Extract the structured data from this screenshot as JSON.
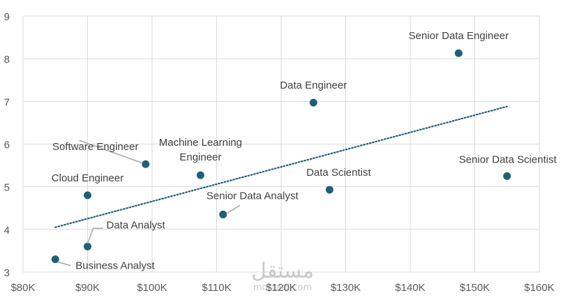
{
  "chart_data": {
    "type": "scatter",
    "title": "",
    "xlabel": "",
    "ylabel": "",
    "xlim": [
      80000,
      160000
    ],
    "ylim": [
      3,
      9
    ],
    "x_ticks": [
      80000,
      90000,
      100000,
      110000,
      120000,
      130000,
      140000,
      150000,
      160000
    ],
    "x_tick_labels": [
      "$80K",
      "$90K",
      "$100K",
      "$110K",
      "$120K",
      "$130K",
      "$140K",
      "$150K",
      "$160K"
    ],
    "y_ticks": [
      3,
      4,
      5,
      6,
      7,
      8,
      9
    ],
    "y_tick_labels": [
      "3",
      "4",
      "5",
      "6",
      "7",
      "8",
      "9"
    ],
    "grid": true,
    "marker_color": "#1f5f7a",
    "trendline": {
      "type": "linear",
      "style": "dotted",
      "color": "#1f5f7a",
      "x_range": [
        85000,
        155000
      ],
      "y_range": [
        4.05,
        6.88
      ]
    },
    "points": [
      {
        "label": "Business Analyst",
        "x": 85000,
        "y": 3.3
      },
      {
        "label": "Data Analyst",
        "x": 90000,
        "y": 3.6
      },
      {
        "label": "Cloud Engineer",
        "x": 90000,
        "y": 4.8
      },
      {
        "label": "Software Engineer",
        "x": 99000,
        "y": 5.53
      },
      {
        "label": "Machine Learning Engineer",
        "label_lines": [
          "Machine Learning",
          "Engineer"
        ],
        "x": 107500,
        "y": 5.27
      },
      {
        "label": "Senior Data Analyst",
        "x": 111000,
        "y": 4.35
      },
      {
        "label": "Data Engineer",
        "x": 125000,
        "y": 6.97
      },
      {
        "label": "Data Scientist",
        "x": 127500,
        "y": 4.93
      },
      {
        "label": "Senior Data Engineer",
        "x": 147500,
        "y": 8.13
      },
      {
        "label": "Senior Data Scientist",
        "x": 155000,
        "y": 5.25
      }
    ]
  },
  "watermark": {
    "text": "مستقل",
    "subtext": "mostaql.com"
  }
}
